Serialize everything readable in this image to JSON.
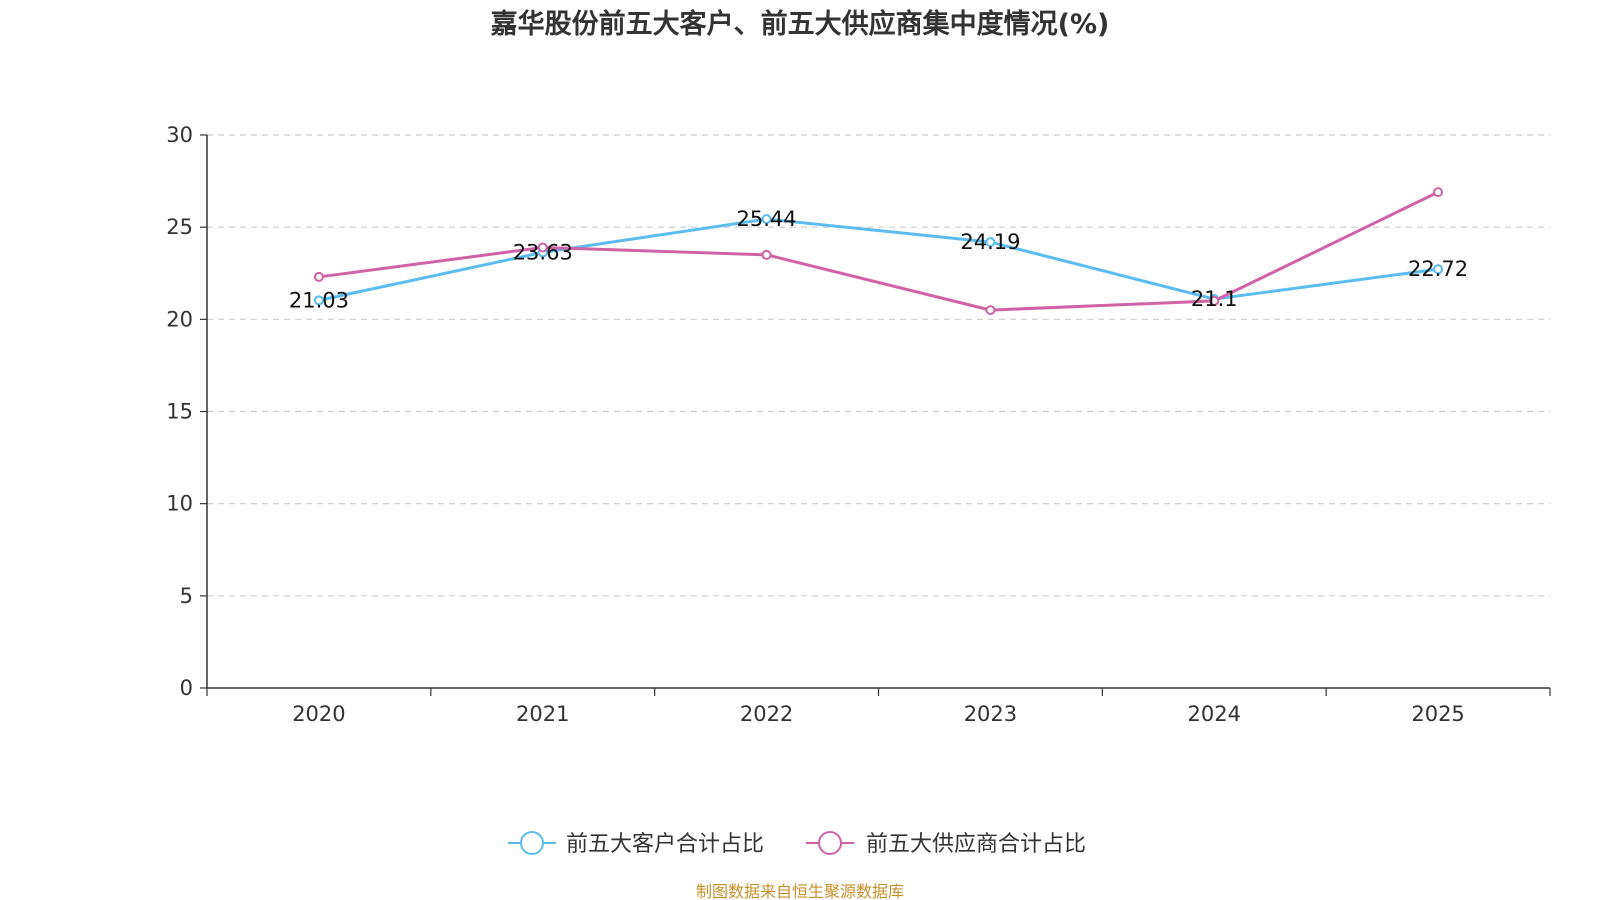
{
  "chart_data": {
    "type": "line",
    "title": "嘉华股份前五大客户、前五大供应商集中度情况(%)",
    "categories": [
      "2020",
      "2021",
      "2022",
      "2023",
      "2024",
      "2025"
    ],
    "ylim": [
      0,
      30
    ],
    "yticks": [
      "0",
      "5",
      "10",
      "15",
      "20",
      "25",
      "30"
    ],
    "grid": true,
    "legend_position": "bottom",
    "series": [
      {
        "name": "前五大客户合计占比",
        "color": "#5bbcf0",
        "values": [
          21.03,
          23.63,
          25.44,
          24.19,
          21.1,
          22.72
        ],
        "labels": [
          "21.03",
          "23.63",
          "25.44",
          "24.19",
          "21.1",
          "22.72"
        ]
      },
      {
        "name": "前五大供应商合计占比",
        "color": "#d062a8",
        "values": [
          22.3,
          23.9,
          23.5,
          20.5,
          21.0,
          26.9
        ],
        "labels": []
      }
    ],
    "source": "制图数据来自恒生聚源数据库"
  }
}
